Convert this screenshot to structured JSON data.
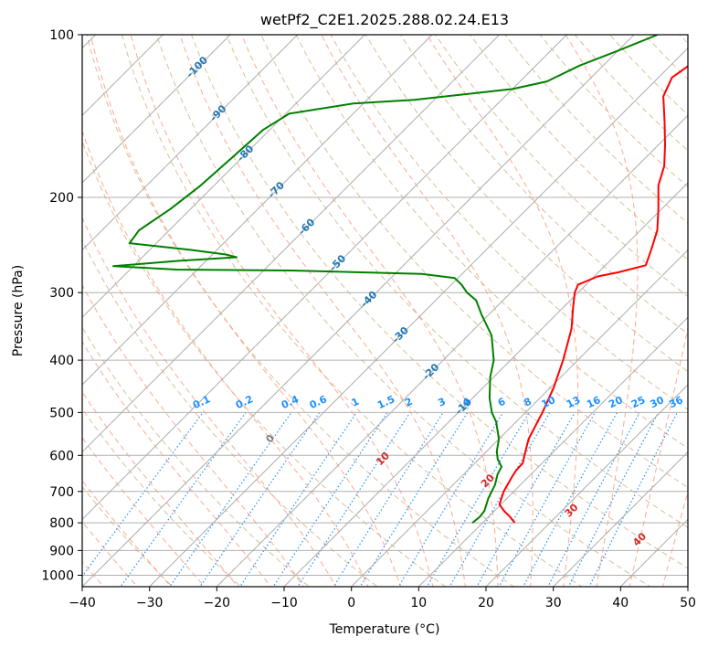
{
  "chart_data": {
    "type": "line",
    "chart_kind": "skew-t log-p",
    "title": "wetPf2_C2E1.2025.288.02.24.E13",
    "xlabel": "Temperature (°C)",
    "ylabel": "Pressure (hPa)",
    "xlim": [
      -40,
      50
    ],
    "ylim": [
      1050,
      100
    ],
    "y_scale": "log",
    "grid": true,
    "x_ticks": [
      -40,
      -30,
      -20,
      -10,
      0,
      10,
      20,
      30,
      40,
      50
    ],
    "x_tick_labels": [
      "−40",
      "−30",
      "−20",
      "−10",
      "0",
      "10",
      "20",
      "30",
      "40",
      "50"
    ],
    "y_ticks": [
      100,
      200,
      300,
      400,
      500,
      600,
      700,
      800,
      900,
      1000
    ],
    "y_tick_labels": [
      "100",
      "200",
      "300",
      "400",
      "500",
      "600",
      "700",
      "800",
      "900",
      "1000"
    ],
    "colors": {
      "temperature": "#ff0000",
      "dewpoint": "#008000",
      "dry_adiabat": "#d2b48c",
      "moist_adiabat": "#ff8c69",
      "mixing_ratio": "#1e90ff",
      "isotherm_bg": "#9acd9a",
      "grid": "#b0b0b0",
      "isotherm_label": "#1f77b4",
      "moist_label": "#d62728"
    },
    "series": [
      {
        "role": "temperature",
        "points": [
          {
            "p": 800,
            "t": 14.8
          },
          {
            "p": 780,
            "t": 13.2
          },
          {
            "p": 760,
            "t": 11.4
          },
          {
            "p": 740,
            "t": 9.8
          },
          {
            "p": 700,
            "t": 8.5
          },
          {
            "p": 660,
            "t": 7.6
          },
          {
            "p": 640,
            "t": 7.2
          },
          {
            "p": 620,
            "t": 7.1
          },
          {
            "p": 600,
            "t": 6.2
          },
          {
            "p": 560,
            "t": 4.4
          },
          {
            "p": 500,
            "t": 2.5
          },
          {
            "p": 450,
            "t": 0.5
          },
          {
            "p": 400,
            "t": -2.2
          },
          {
            "p": 350,
            "t": -5.6
          },
          {
            "p": 320,
            "t": -8.5
          },
          {
            "p": 300,
            "t": -10.5
          },
          {
            "p": 290,
            "t": -11.2
          },
          {
            "p": 280,
            "t": -9.5
          },
          {
            "p": 275,
            "t": -7.0
          },
          {
            "p": 267,
            "t": -4.0
          },
          {
            "p": 250,
            "t": -5.5
          },
          {
            "p": 230,
            "t": -7.5
          },
          {
            "p": 210,
            "t": -10.5
          },
          {
            "p": 190,
            "t": -14.0
          },
          {
            "p": 175,
            "t": -16.0
          },
          {
            "p": 160,
            "t": -19.0
          },
          {
            "p": 145,
            "t": -22.5
          },
          {
            "p": 130,
            "t": -26.5
          },
          {
            "p": 120,
            "t": -28.0
          },
          {
            "p": 112,
            "t": -27.0
          },
          {
            "p": 100,
            "t": -23.5
          }
        ]
      },
      {
        "role": "dewpoint",
        "points": [
          {
            "p": 800,
            "t": 8.5
          },
          {
            "p": 780,
            "t": 8.7
          },
          {
            "p": 760,
            "t": 8.5
          },
          {
            "p": 720,
            "t": 7.2
          },
          {
            "p": 680,
            "t": 6.2
          },
          {
            "p": 650,
            "t": 5.0
          },
          {
            "p": 630,
            "t": 4.5
          },
          {
            "p": 610,
            "t": 2.8
          },
          {
            "p": 590,
            "t": 1.5
          },
          {
            "p": 560,
            "t": 0.0
          },
          {
            "p": 520,
            "t": -3.0
          },
          {
            "p": 500,
            "t": -5.0
          },
          {
            "p": 470,
            "t": -7.5
          },
          {
            "p": 430,
            "t": -10.5
          },
          {
            "p": 400,
            "t": -12.5
          },
          {
            "p": 360,
            "t": -16.5
          },
          {
            "p": 330,
            "t": -21.0
          },
          {
            "p": 310,
            "t": -24.0
          },
          {
            "p": 300,
            "t": -26.5
          },
          {
            "p": 290,
            "t": -28.5
          },
          {
            "p": 282,
            "t": -30.5
          },
          {
            "p": 277,
            "t": -36.0
          },
          {
            "p": 273,
            "t": -56.0
          },
          {
            "p": 272,
            "t": -73.0
          },
          {
            "p": 268,
            "t": -83.0
          },
          {
            "p": 262,
            "t": -74.0
          },
          {
            "p": 258,
            "t": -66.0
          },
          {
            "p": 255,
            "t": -68.0
          },
          {
            "p": 250,
            "t": -74.0
          },
          {
            "p": 243,
            "t": -84.0
          },
          {
            "p": 230,
            "t": -84.5
          },
          {
            "p": 210,
            "t": -83.0
          },
          {
            "p": 190,
            "t": -82.0
          },
          {
            "p": 170,
            "t": -81.5
          },
          {
            "p": 150,
            "t": -81.0
          },
          {
            "p": 140,
            "t": -79.5
          },
          {
            "p": 134,
            "t": -71.5
          },
          {
            "p": 132,
            "t": -63.0
          },
          {
            "p": 126,
            "t": -50.0
          },
          {
            "p": 122,
            "t": -46.0
          },
          {
            "p": 114,
            "t": -43.5
          },
          {
            "p": 107,
            "t": -40.0
          },
          {
            "p": 100,
            "t": -36.5
          }
        ]
      }
    ],
    "isotherm_labels": [
      {
        "text": "-100",
        "t": -100,
        "p": 115
      },
      {
        "text": "-90",
        "t": -90,
        "p": 140
      },
      {
        "text": "-80",
        "t": -80,
        "p": 166
      },
      {
        "text": "-70",
        "t": -70,
        "p": 194
      },
      {
        "text": "-60",
        "t": -60,
        "p": 227
      },
      {
        "text": "-50",
        "t": -50,
        "p": 265
      },
      {
        "text": "-40",
        "t": -40,
        "p": 309
      },
      {
        "text": "-30",
        "t": -30,
        "p": 360
      },
      {
        "text": "-20",
        "t": -20,
        "p": 421
      },
      {
        "text": "-10",
        "t": -10,
        "p": 488
      }
    ],
    "mixing_ratios": [
      {
        "text": "0.1",
        "w": 0.1
      },
      {
        "text": "0.2",
        "w": 0.2
      },
      {
        "text": "0.4",
        "w": 0.4
      },
      {
        "text": "0.6",
        "w": 0.6
      },
      {
        "text": "1",
        "w": 1
      },
      {
        "text": "1.5",
        "w": 1.5
      },
      {
        "text": "2",
        "w": 2
      },
      {
        "text": "3",
        "w": 3
      },
      {
        "text": "4",
        "w": 4
      },
      {
        "text": "6",
        "w": 6
      },
      {
        "text": "8",
        "w": 8
      },
      {
        "text": "10",
        "w": 10
      },
      {
        "text": "13",
        "w": 13
      },
      {
        "text": "16",
        "w": 16
      },
      {
        "text": "20",
        "w": 20
      },
      {
        "text": "25",
        "w": 25
      },
      {
        "text": "30",
        "w": 30
      },
      {
        "text": "36",
        "w": 36
      }
    ],
    "moist_adiabat_labels": [
      {
        "text": "0",
        "theta_w": 0
      },
      {
        "text": "10",
        "theta_w": 10
      },
      {
        "text": "20",
        "theta_w": 20
      },
      {
        "text": "30",
        "theta_w": 30
      },
      {
        "text": "40",
        "theta_w": 40
      }
    ]
  }
}
